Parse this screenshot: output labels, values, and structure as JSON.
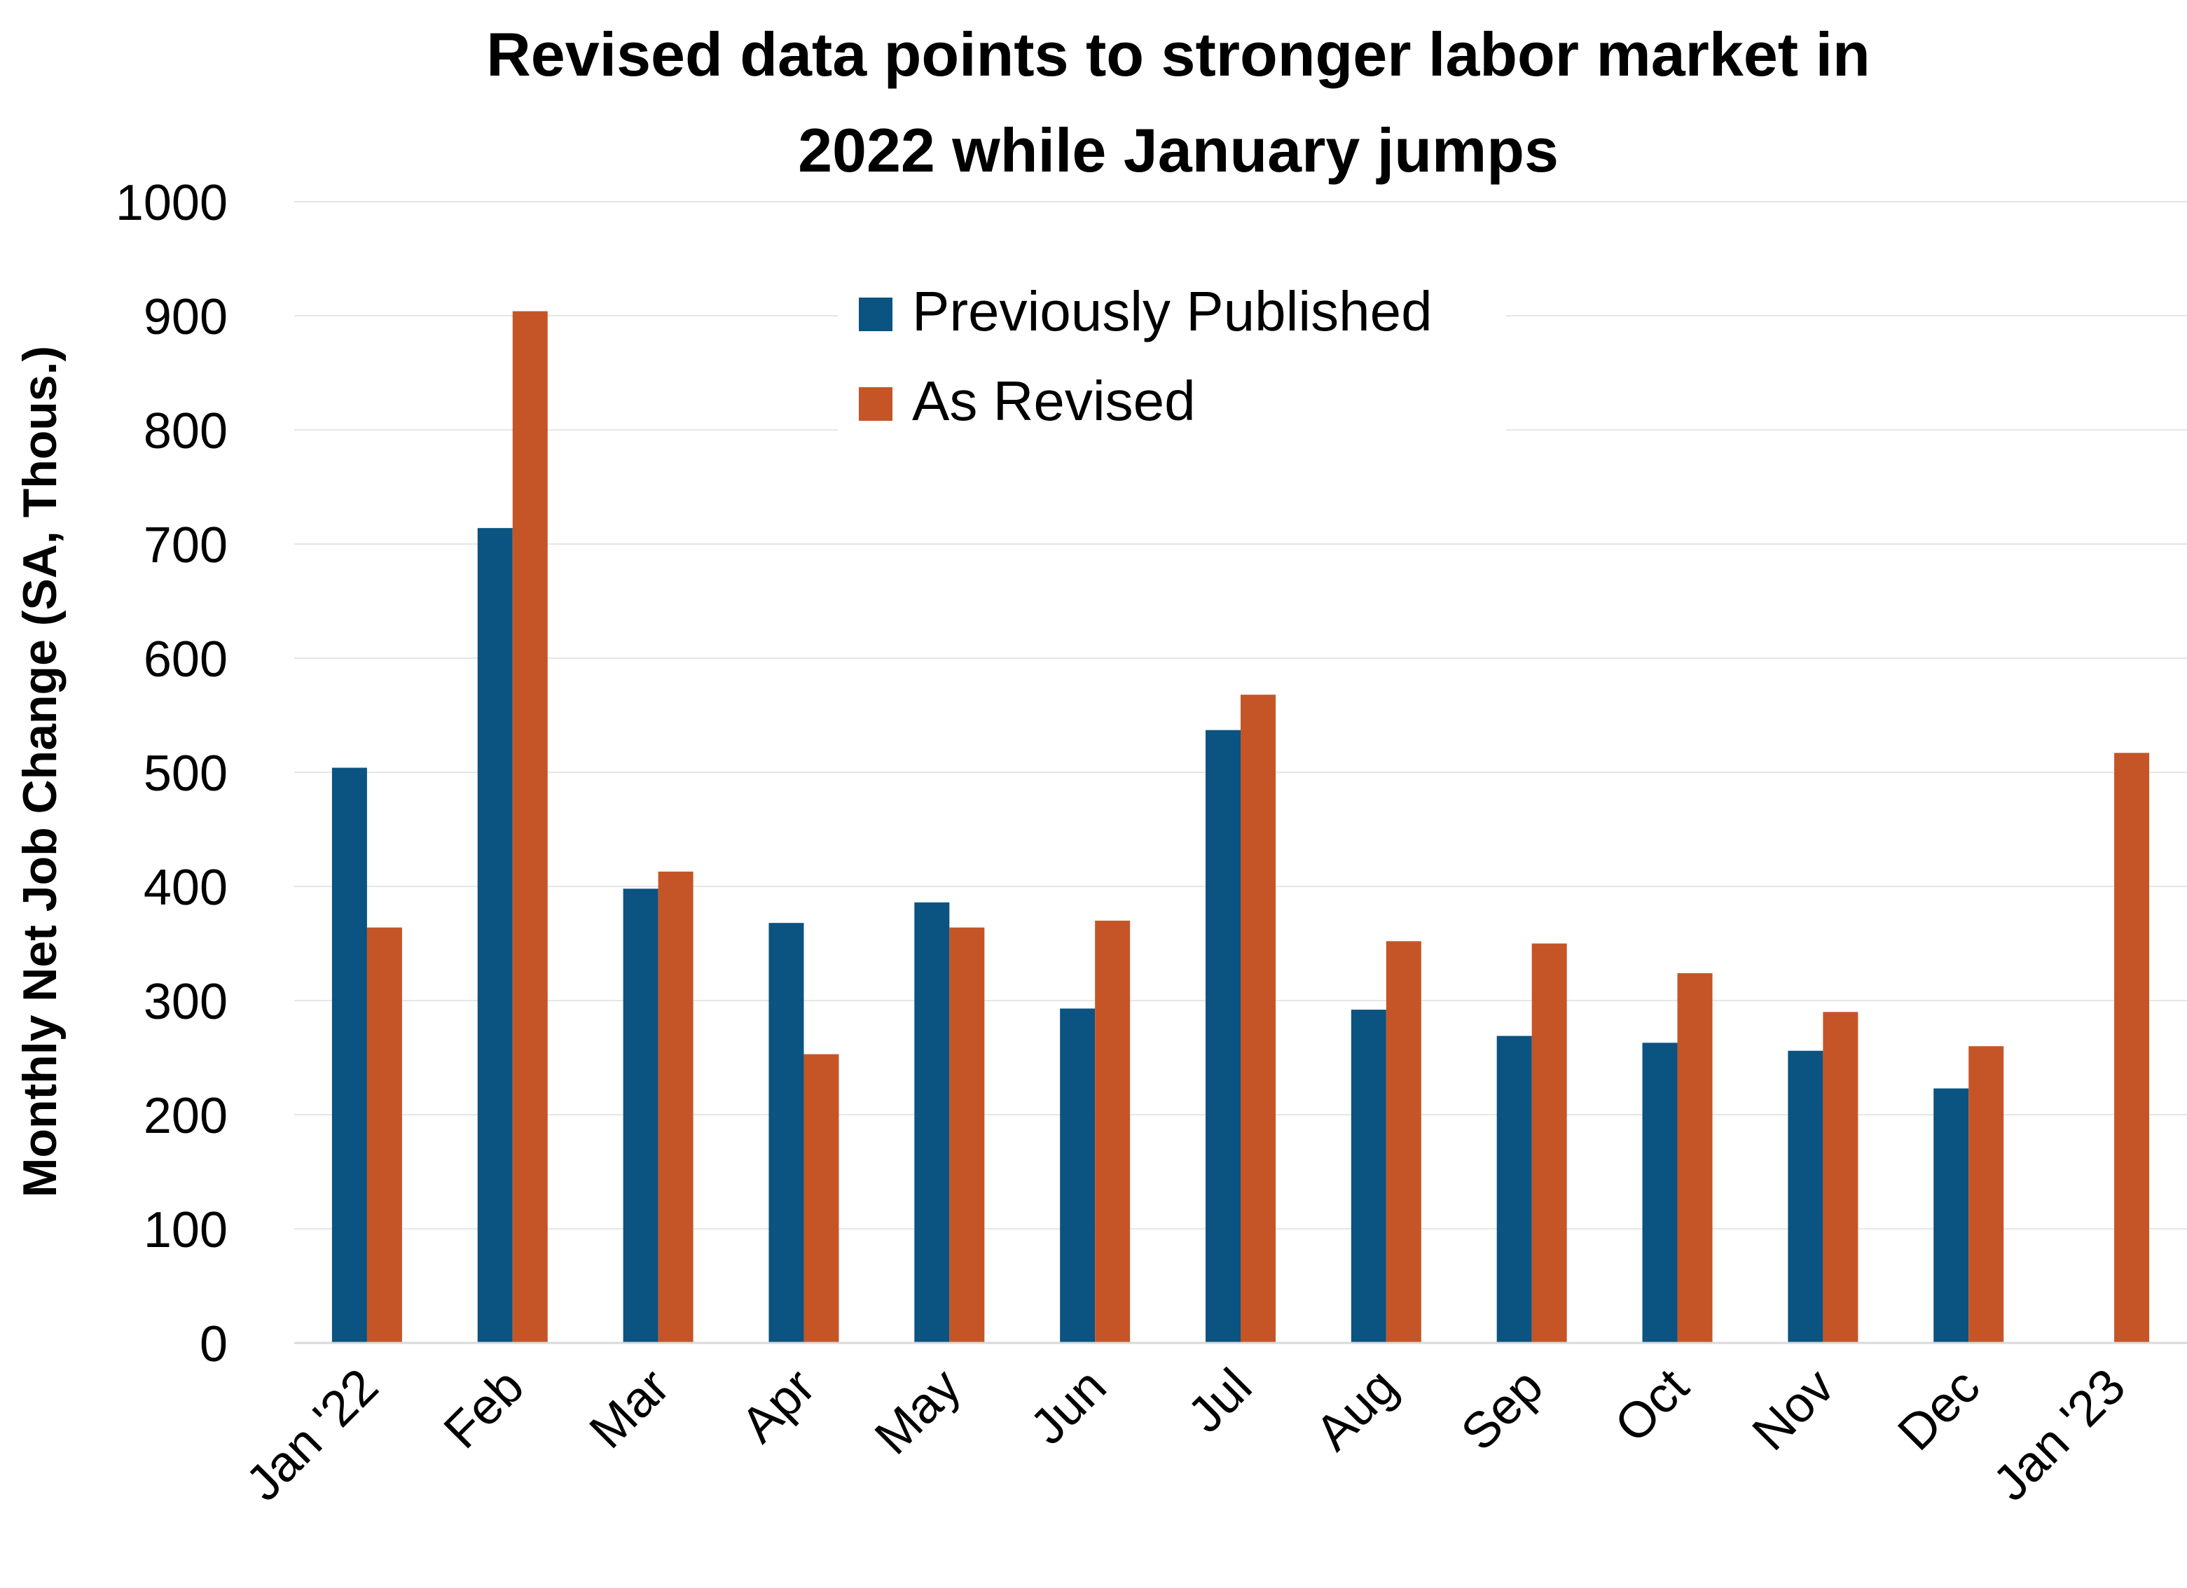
{
  "chart_data": {
    "type": "bar",
    "title_lines": [
      "Revised data points to stronger labor market in",
      "2022 while January jumps"
    ],
    "xlabel": "",
    "ylabel": "Monthly Net Job Change (SA, Thous.)",
    "ylim": [
      0,
      1000
    ],
    "yticks": [
      0,
      100,
      200,
      300,
      400,
      500,
      600,
      700,
      800,
      900,
      1000
    ],
    "grid": true,
    "legend_position": "top-center",
    "categories": [
      "Jan '22",
      "Feb",
      "Mar",
      "Apr",
      "May",
      "Jun",
      "Jul",
      "Aug",
      "Sep",
      "Oct",
      "Nov",
      "Dec",
      "Jan '23"
    ],
    "series": [
      {
        "name": "Previously Published",
        "color": "#0b5380",
        "values": [
          504,
          714,
          398,
          368,
          386,
          293,
          537,
          292,
          269,
          263,
          256,
          223,
          null
        ]
      },
      {
        "name": "As Revised",
        "color": "#c55527",
        "values": [
          364,
          904,
          413,
          253,
          364,
          370,
          568,
          352,
          350,
          324,
          290,
          260,
          517
        ]
      }
    ]
  }
}
